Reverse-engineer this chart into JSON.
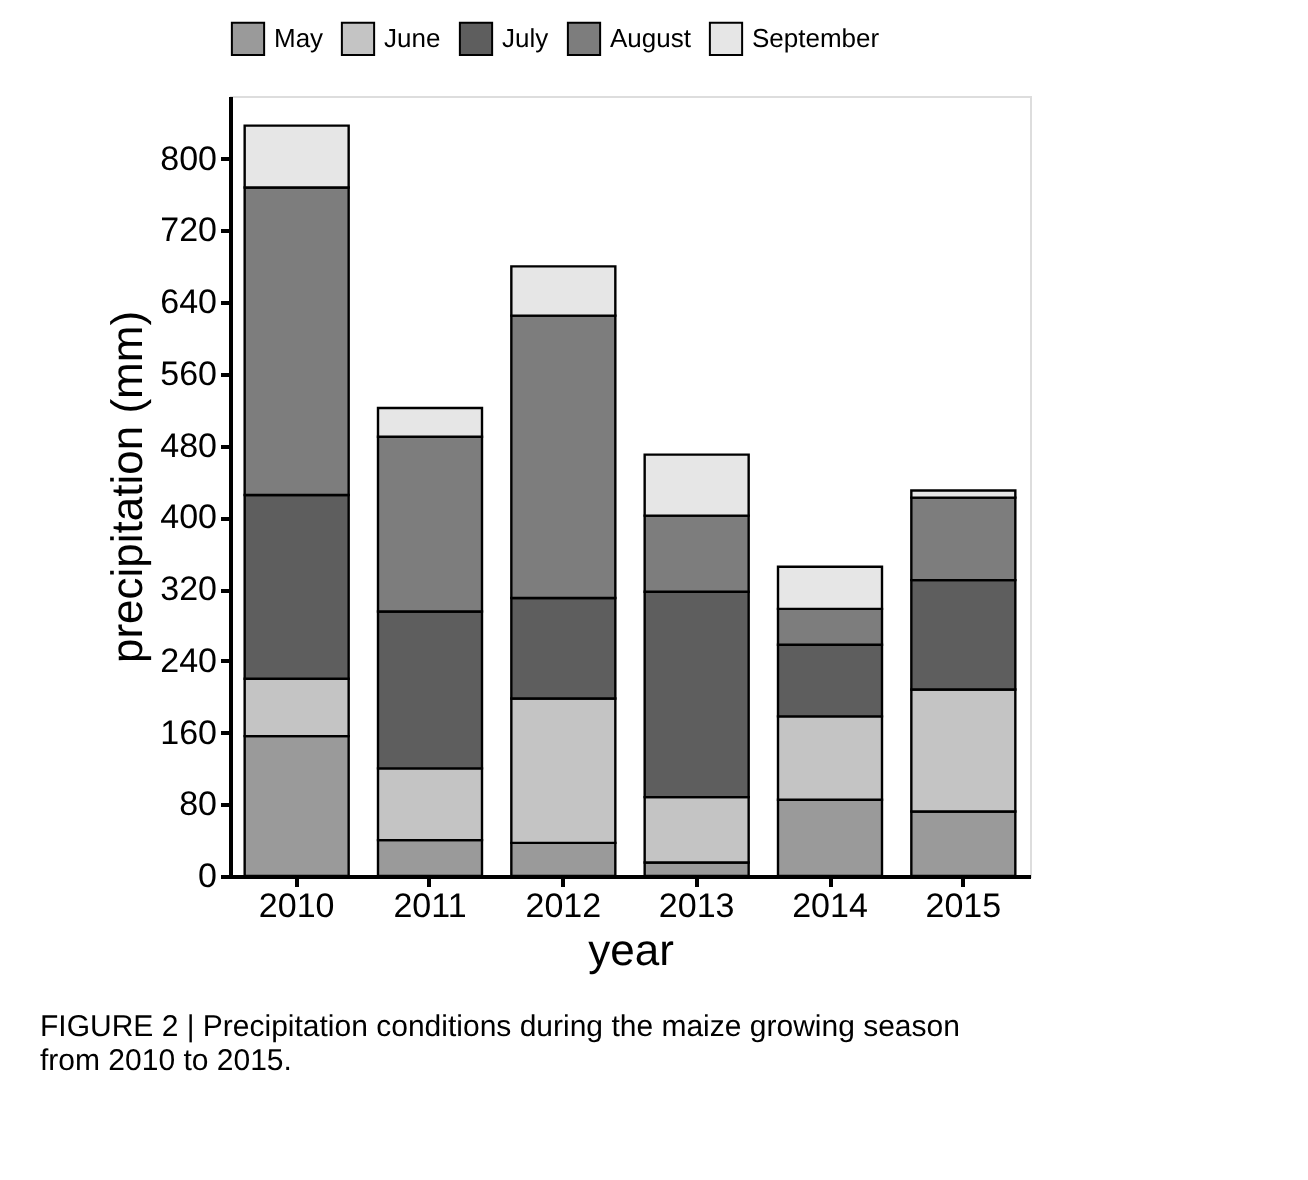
{
  "chart_data": {
    "type": "bar",
    "stacked": true,
    "xlabel": "year",
    "ylabel": "precipitation (mm)",
    "categories": [
      "2010",
      "2011",
      "2012",
      "2013",
      "2014",
      "2015"
    ],
    "series": [
      {
        "name": "May",
        "color": "#9a9a9a",
        "values": [
          156,
          40,
          37,
          15,
          85,
          72
        ]
      },
      {
        "name": "June",
        "color": "#c4c4c4",
        "values": [
          64,
          80,
          161,
          73,
          93,
          136
        ]
      },
      {
        "name": "July",
        "color": "#5e5e5e",
        "values": [
          205,
          175,
          112,
          229,
          80,
          122
        ]
      },
      {
        "name": "August",
        "color": "#7d7d7d",
        "values": [
          343,
          195,
          315,
          85,
          40,
          92
        ]
      },
      {
        "name": "September",
        "color": "#e6e6e6",
        "values": [
          69,
          32,
          55,
          68,
          47,
          8
        ]
      }
    ],
    "ylim": [
      0,
      870
    ],
    "yticks": [
      0,
      80,
      160,
      240,
      320,
      400,
      480,
      560,
      640,
      720,
      800
    ],
    "grid": false,
    "legend": "top",
    "annotations": [
      "FIGURE 2 | Precipitation conditions during the maize growing season from 2010 to 2015."
    ]
  }
}
